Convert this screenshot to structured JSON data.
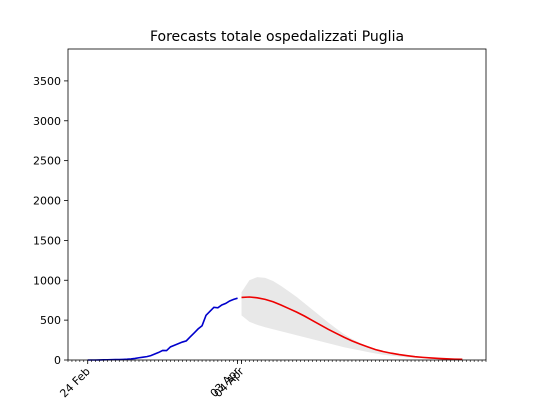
{
  "chart_data": {
    "type": "line",
    "title": "Forecasts totale ospedalizzati Puglia",
    "xlim": [
      "19 Feb",
      "05 Jun"
    ],
    "xticks": [
      "24 Feb",
      "03 Apr",
      "04 Apr"
    ],
    "ylim": [
      0,
      3900
    ],
    "yticks": [
      0,
      500,
      1000,
      1500,
      2000,
      2500,
      3000,
      3500
    ],
    "series": [
      {
        "color": "#0000cc",
        "x": [
          "24 Feb",
          "25 Feb",
          "26 Feb",
          "27 Feb",
          "28 Feb",
          "01 Mar",
          "02 Mar",
          "03 Mar",
          "04 Mar",
          "05 Mar",
          "06 Mar",
          "07 Mar",
          "08 Mar",
          "09 Mar",
          "10 Mar",
          "11 Mar",
          "12 Mar",
          "13 Mar",
          "14 Mar",
          "15 Mar",
          "16 Mar",
          "17 Mar",
          "18 Mar",
          "19 Mar",
          "20 Mar",
          "21 Mar",
          "22 Mar",
          "23 Mar",
          "24 Mar",
          "25 Mar",
          "26 Mar",
          "27 Mar",
          "28 Mar",
          "29 Mar",
          "30 Mar",
          "31 Mar",
          "01 Apr",
          "02 Apr",
          "03 Apr"
        ],
        "values": [
          0,
          0,
          0,
          1,
          2,
          3,
          4,
          5,
          6,
          8,
          10,
          14,
          20,
          28,
          35,
          42,
          55,
          75,
          95,
          120,
          118,
          165,
          185,
          205,
          225,
          240,
          290,
          340,
          390,
          430,
          560,
          610,
          660,
          655,
          690,
          710,
          740,
          760,
          775
        ]
      },
      {
        "color": "#ee0000",
        "band_color": "#e8e8e8",
        "x": [
          "04 Apr",
          "06 Apr",
          "08 Apr",
          "10 Apr",
          "12 Apr",
          "14 Apr",
          "16 Apr",
          "18 Apr",
          "20 Apr",
          "22 Apr",
          "24 Apr",
          "26 Apr",
          "28 Apr",
          "30 Apr",
          "02 May",
          "04 May",
          "06 May",
          "08 May",
          "10 May",
          "12 May",
          "14 May",
          "16 May",
          "18 May",
          "20 May",
          "22 May",
          "24 May",
          "26 May",
          "28 May",
          "30 May"
        ],
        "values": [
          785,
          790,
          780,
          760,
          730,
          690,
          645,
          600,
          550,
          495,
          440,
          385,
          335,
          285,
          240,
          200,
          165,
          130,
          105,
          85,
          68,
          54,
          42,
          33,
          26,
          20,
          15,
          11,
          8
        ],
        "upper": [
          850,
          1000,
          1040,
          1030,
          990,
          930,
          860,
          790,
          710,
          630,
          550,
          470,
          395,
          325,
          265,
          215,
          170,
          135,
          105,
          82,
          64,
          50,
          38,
          29,
          22,
          17,
          12,
          9,
          6
        ],
        "lower": [
          560,
          480,
          440,
          410,
          385,
          360,
          335,
          310,
          285,
          260,
          235,
          210,
          185,
          160,
          140,
          120,
          100,
          82,
          66,
          53,
          42,
          33,
          26,
          20,
          15,
          11,
          8,
          6,
          4
        ]
      }
    ]
  }
}
